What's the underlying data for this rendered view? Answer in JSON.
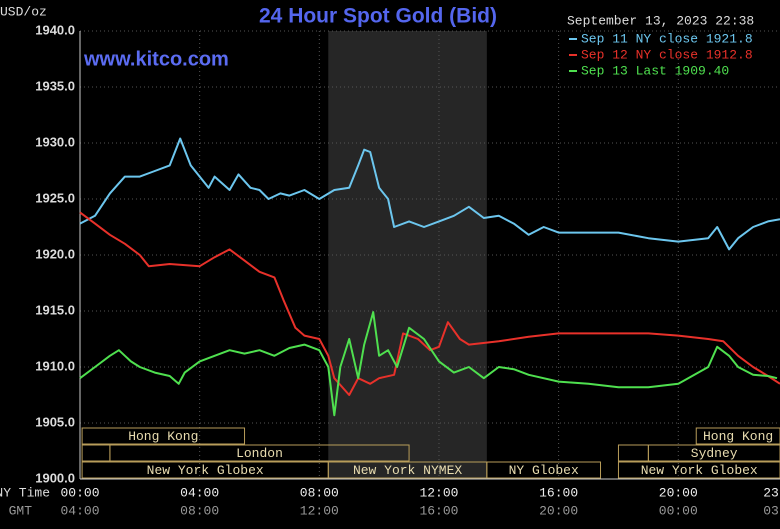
{
  "chart_data": {
    "type": "line",
    "title": "24 Hour Spot Gold (Bid)",
    "subtitle": "www.kitco.com",
    "y_label": "USD/oz",
    "timestamp": "September 13, 2023 22:38",
    "x_label": "NY Time",
    "x2_label": "GMT",
    "xlim": [
      0,
      23.4
    ],
    "xticks": [
      {
        "value": 0,
        "label": "00:00"
      },
      {
        "value": 4,
        "label": "04:00"
      },
      {
        "value": 8,
        "label": "08:00"
      },
      {
        "value": 12,
        "label": "12:00"
      },
      {
        "value": 16,
        "label": "16:00"
      },
      {
        "value": 20,
        "label": "20:00"
      },
      {
        "value": 23.1,
        "label": "23"
      }
    ],
    "x2ticks": [
      {
        "value": 0,
        "label": "04:00"
      },
      {
        "value": 4,
        "label": "08:00"
      },
      {
        "value": 8,
        "label": "12:00"
      },
      {
        "value": 12,
        "label": "16:00"
      },
      {
        "value": 16,
        "label": "20:00"
      },
      {
        "value": 20,
        "label": "00:00"
      },
      {
        "value": 23.1,
        "label": "03"
      }
    ],
    "ylim": [
      1900,
      1940
    ],
    "yticks": [
      {
        "value": 1900,
        "label": "1900.0"
      },
      {
        "value": 1905,
        "label": "1905.0"
      },
      {
        "value": 1910,
        "label": "1910.0"
      },
      {
        "value": 1915,
        "label": "1915.0"
      },
      {
        "value": 1920,
        "label": "1920.0"
      },
      {
        "value": 1925,
        "label": "1925.0"
      },
      {
        "value": 1930,
        "label": "1930.0"
      },
      {
        "value": 1935,
        "label": "1935.0"
      },
      {
        "value": 1940,
        "label": "1940.0"
      }
    ],
    "grid": true,
    "shaded_range": [
      8.3,
      13.6
    ],
    "sessions": [
      {
        "name": "Hong Kong",
        "start": 0.07,
        "end": 5.5,
        "row": 0
      },
      {
        "name": null,
        "start": 0.07,
        "end": 1.0,
        "row": 1
      },
      {
        "name": "London",
        "start": 1.0,
        "end": 11.0,
        "row": 1
      },
      {
        "name": "New York Globex",
        "start": 0.07,
        "end": 8.3,
        "row": 2
      },
      {
        "name": "New York NYMEX",
        "start": 8.3,
        "end": 13.6,
        "row": 2
      },
      {
        "name": "NY Globex",
        "start": 13.6,
        "end": 17.4,
        "row": 2
      },
      {
        "name": "Hong Kong",
        "start": 20.6,
        "end": 23.4,
        "row": 0
      },
      {
        "name": null,
        "start": 18.0,
        "end": 19.0,
        "row": 1
      },
      {
        "name": "Sydney",
        "start": 19.0,
        "end": 23.4,
        "row": 1
      },
      {
        "name": "New York Globex",
        "start": 18.0,
        "end": 23.4,
        "row": 2
      }
    ],
    "series": [
      {
        "name": "Sep 11 NY close 1921.8",
        "color": "#6cc6ee",
        "x": [
          0,
          0.5,
          1,
          1.5,
          2,
          2.5,
          3,
          3.35,
          3.7,
          4,
          4.3,
          4.5,
          5,
          5.3,
          5.7,
          6,
          6.3,
          6.7,
          7,
          7.5,
          8,
          8.5,
          9,
          9.3,
          9.5,
          9.7,
          10,
          10.3,
          10.5,
          11,
          11.5,
          12,
          12.5,
          13,
          13.5,
          14,
          14.5,
          15,
          15.5,
          16,
          17,
          18,
          19,
          20,
          21,
          21.3,
          21.7,
          22,
          22.5,
          23,
          23.4
        ],
        "values": [
          1922.8,
          1923.5,
          1925.5,
          1927,
          1927,
          1927.5,
          1928,
          1930.4,
          1928,
          1927,
          1926,
          1927,
          1925.8,
          1927.2,
          1926,
          1925.8,
          1925,
          1925.5,
          1925.3,
          1925.8,
          1925,
          1925.8,
          1926,
          1928,
          1929.4,
          1929.2,
          1926,
          1925,
          1922.5,
          1923,
          1922.5,
          1923,
          1923.5,
          1924.3,
          1923.3,
          1923.5,
          1922.8,
          1921.8,
          1922.5,
          1922,
          1922,
          1922,
          1921.5,
          1921.2,
          1921.5,
          1922.5,
          1920.5,
          1921.5,
          1922.5,
          1923,
          1923.2
        ]
      },
      {
        "name": "Sep 12 NY close 1912.8",
        "color": "#e8312a",
        "x": [
          0,
          0.5,
          1,
          1.5,
          2,
          2.3,
          3,
          4,
          4.5,
          5,
          5.5,
          6,
          6.5,
          6.8,
          7.2,
          7.5,
          8,
          8.3,
          8.5,
          9,
          9.3,
          9.7,
          10,
          10.5,
          10.8,
          11.3,
          11.7,
          12,
          12.3,
          12.7,
          13,
          14,
          15,
          16,
          17,
          18,
          19,
          20,
          21,
          21.5,
          22,
          22.5,
          23,
          23.4
        ],
        "values": [
          1923.8,
          1922.8,
          1921.8,
          1921,
          1920,
          1919,
          1919.2,
          1919,
          1919.8,
          1920.5,
          1919.5,
          1918.5,
          1918,
          1916,
          1913.5,
          1912.8,
          1912.5,
          1911,
          1909,
          1907.5,
          1909,
          1908.5,
          1909,
          1909.3,
          1913,
          1912.5,
          1911.5,
          1911.8,
          1914,
          1912.5,
          1912,
          1912.3,
          1912.7,
          1913,
          1913,
          1913,
          1913,
          1912.8,
          1912.5,
          1912.3,
          1911,
          1910,
          1909.2,
          1908.5
        ]
      },
      {
        "name": "Sep 13 Last 1909.40",
        "color": "#4fe04f",
        "x": [
          0,
          0.5,
          1,
          1.3,
          1.7,
          2,
          2.5,
          3,
          3.3,
          3.5,
          4,
          4.5,
          5,
          5.5,
          6,
          6.5,
          7,
          7.5,
          8,
          8.3,
          8.5,
          8.7,
          9,
          9.3,
          9.5,
          9.8,
          10,
          10.3,
          10.6,
          11,
          11.5,
          12,
          12.5,
          13,
          13.5,
          14,
          14.5,
          15,
          16,
          17,
          18,
          19,
          20,
          21,
          21.3,
          21.7,
          22,
          22.5,
          23,
          23.3
        ],
        "values": [
          1909,
          1910,
          1911,
          1911.5,
          1910.5,
          1910,
          1909.5,
          1909.2,
          1908.5,
          1909.5,
          1910.5,
          1911,
          1911.5,
          1911.2,
          1911.5,
          1911,
          1911.7,
          1912,
          1911.5,
          1910,
          1905.7,
          1910,
          1912.5,
          1909,
          1912,
          1914.9,
          1911,
          1911.5,
          1910,
          1913.5,
          1912.5,
          1910.5,
          1909.5,
          1910,
          1909,
          1910,
          1909.8,
          1909.3,
          1908.7,
          1908.5,
          1908.2,
          1908.2,
          1908.5,
          1910,
          1911.8,
          1911,
          1910,
          1909.3,
          1909.2,
          1909
        ]
      }
    ]
  }
}
